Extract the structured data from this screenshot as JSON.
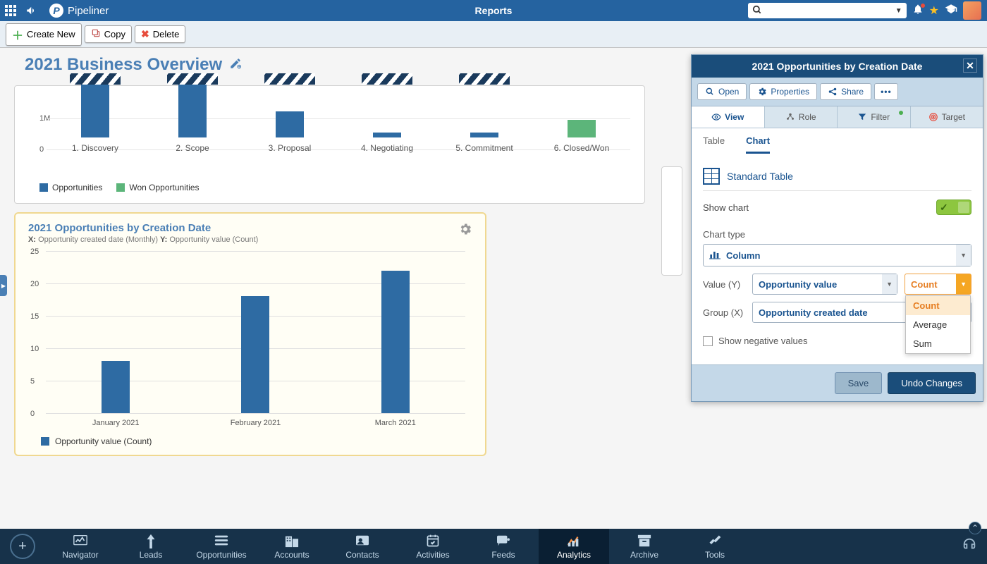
{
  "header": {
    "brand": "Pipeliner",
    "center_title": "Reports"
  },
  "toolbar": {
    "create": "Create New",
    "copy": "Copy",
    "delete": "Delete"
  },
  "page": {
    "title": "2021 Business Overview"
  },
  "chart1": {
    "ytick_label": "1M",
    "ylim": 1500000,
    "bar_color": "#2e6ba3",
    "won_color": "#5cb57a",
    "categories": [
      "1. Discovery",
      "2. Scope",
      "3. Proposal",
      "4. Negotiating",
      "5. Commitment",
      "6. Closed/Won"
    ],
    "values": [
      1500000,
      1500000,
      650000,
      120000,
      130000,
      0
    ],
    "won_value": 450000,
    "legend": {
      "opp": "Opportunities",
      "won": "Won Opportunities"
    }
  },
  "chart2": {
    "title": "2021 Opportunities by Creation Date",
    "subtitle_x_label": "X:",
    "subtitle_x": "Opportunity created date (Monthly)",
    "subtitle_y_label": "Y:",
    "subtitle_y": "Opportunity value (Count)",
    "ylim": 25,
    "ytick_step": 5,
    "yticks": [
      0,
      5,
      10,
      15,
      20,
      25
    ],
    "bar_color": "#2e6ba3",
    "background": "#fffef5",
    "border": "#f0d890",
    "categories": [
      "January 2021",
      "February 2021",
      "March 2021"
    ],
    "values": [
      8,
      18,
      22
    ],
    "legend": "Opportunity value (Count)"
  },
  "side_panel": {
    "title": "2021 Opportunities by Creation Date",
    "actions": {
      "open": "Open",
      "properties": "Properties",
      "share": "Share"
    },
    "tabs": {
      "view": "View",
      "role": "Role",
      "filter": "Filter",
      "target": "Target"
    },
    "subtabs": {
      "table": "Table",
      "chart": "Chart"
    },
    "standard_table": "Standard Table",
    "show_chart": "Show chart",
    "chart_type_label": "Chart type",
    "chart_type_value": "Column",
    "value_y_label": "Value (Y)",
    "value_y_value": "Opportunity value",
    "agg_value": "Count",
    "agg_options": [
      "Count",
      "Average",
      "Sum"
    ],
    "group_x_label": "Group (X)",
    "group_x_value": "Opportunity created date",
    "show_negative": "Show negative values",
    "save": "Save",
    "undo": "Undo Changes"
  },
  "bottom_nav": {
    "items": [
      {
        "label": "Navigator",
        "icon": "📊"
      },
      {
        "label": "Leads",
        "icon": "📍"
      },
      {
        "label": "Opportunities",
        "icon": "☰"
      },
      {
        "label": "Accounts",
        "icon": "🏢"
      },
      {
        "label": "Contacts",
        "icon": "👤"
      },
      {
        "label": "Activities",
        "icon": "✓"
      },
      {
        "label": "Feeds",
        "icon": "💬"
      },
      {
        "label": "Analytics",
        "icon": "📈"
      },
      {
        "label": "Archive",
        "icon": "🗄"
      },
      {
        "label": "Tools",
        "icon": "🔧"
      }
    ],
    "active_index": 7
  },
  "colors": {
    "header_bg": "#2563a0",
    "panel_accent": "#1a4d7a",
    "accent_orange": "#f5a623"
  }
}
